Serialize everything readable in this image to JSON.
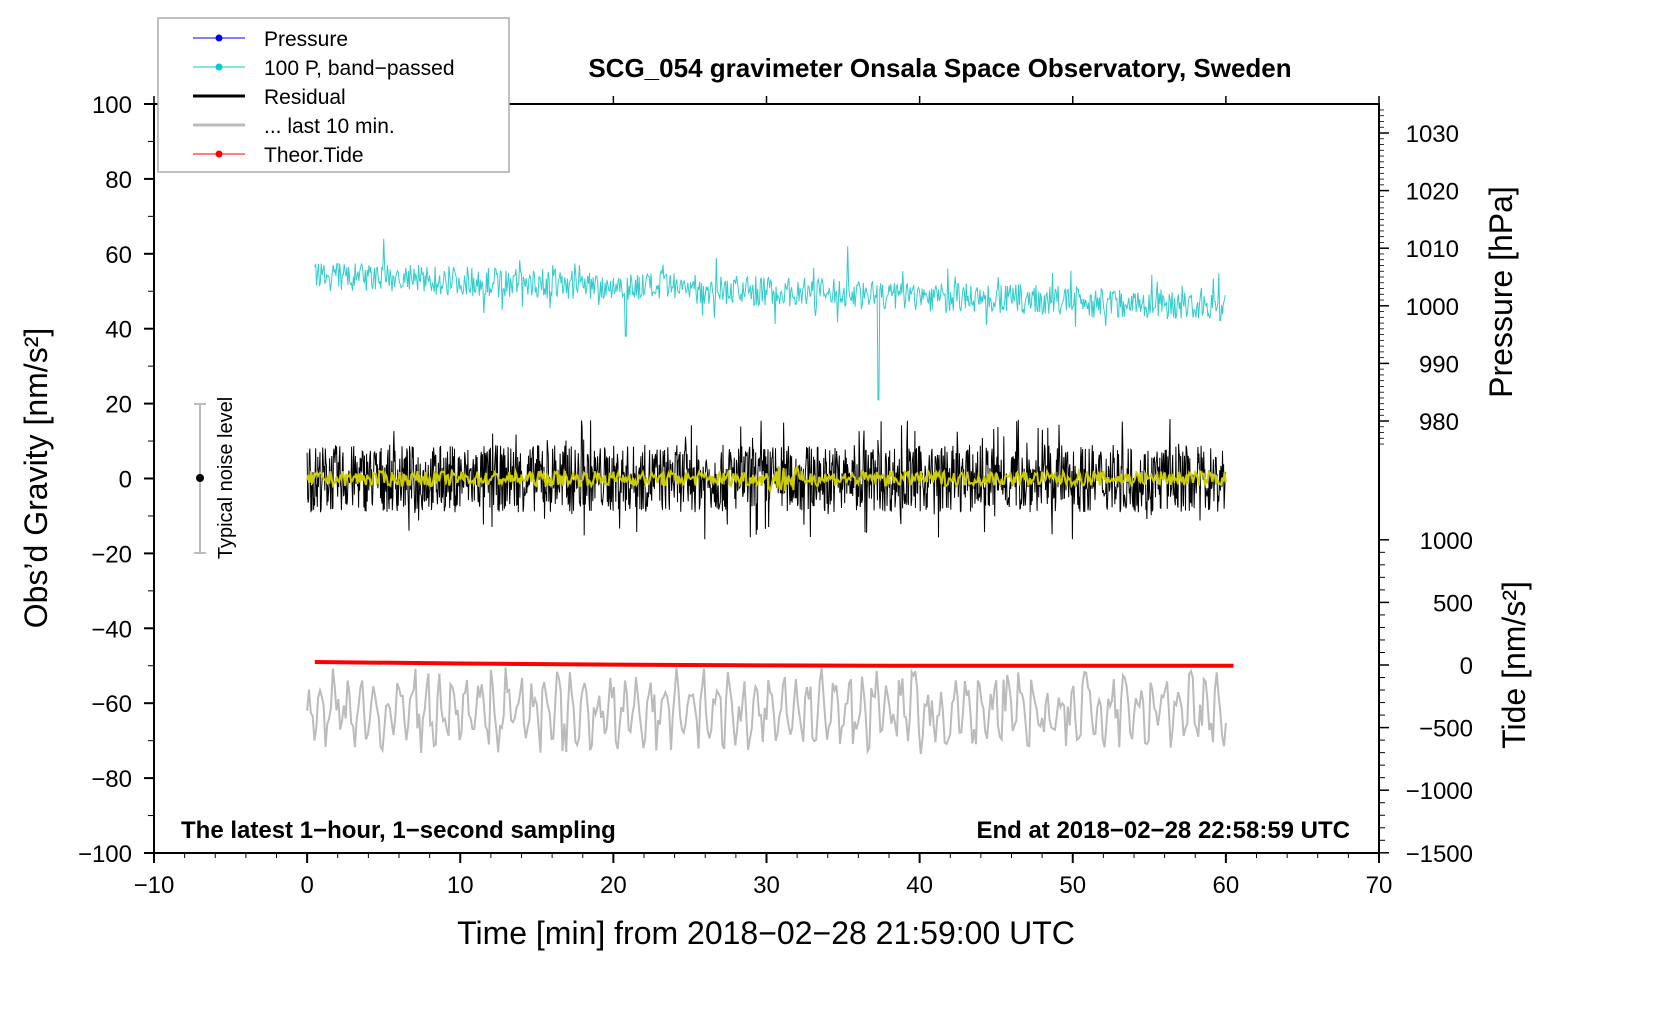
{
  "chart_data": {
    "type": "line",
    "title": "SCG_054 gravimeter Onsala Space Observatory, Sweden",
    "xlabel": "Time [min] from 2018−02−28 21:59:00 UTC",
    "ylabel": "Obs’d Gravity [nm/s²]",
    "ylabel_right_top": "Pressure [hPa]",
    "ylabel_right_bottom": "Tide [nm/s²]",
    "xlim": [
      -10,
      70
    ],
    "ylim": [
      -100,
      100
    ],
    "pressure_lim": [
      980,
      1030
    ],
    "tide_lim": [
      -1500,
      1000
    ],
    "xticks": [
      "−10",
      "0",
      "10",
      "20",
      "30",
      "40",
      "50",
      "60",
      "70"
    ],
    "yticks": [
      "100",
      "80",
      "60",
      "40",
      "20",
      "0",
      "−20",
      "−40",
      "−60",
      "−80",
      "−100"
    ],
    "pressure_ticks": [
      "1030",
      "1020",
      "1010",
      "1000",
      "990",
      "980"
    ],
    "tide_ticks": [
      "1000",
      "500",
      "0",
      "−500",
      "−1000",
      "−1500"
    ],
    "legend": {
      "placement": "top-left",
      "entries": [
        {
          "label": "Pressure",
          "color": "#0000ff"
        },
        {
          "label": "100 P, band−passed",
          "color": "#00cccc"
        },
        {
          "label": "Residual",
          "color": "#000000"
        },
        {
          "label": "... last 10 min.",
          "color": "#bbbbbb"
        },
        {
          "label": "Theor.Tide",
          "color": "#ff0000"
        }
      ]
    },
    "annotations": {
      "bottom_left": "The latest 1−hour, 1−second sampling",
      "bottom_right": "End at 2018−02−28 22:58:59 UTC",
      "noise_label": "Typical noise level",
      "noise_range": [
        -20,
        20
      ]
    },
    "series": [
      {
        "name": "100 P, band-passed",
        "x_range": [
          0.5,
          60
        ],
        "baseline_start": 54,
        "baseline_end": 46,
        "amplitude": 5,
        "spikes": [
          [
            20.8,
            68
          ],
          [
            20.8,
            38
          ],
          [
            37.3,
            63
          ],
          [
            37.3,
            21
          ],
          [
            35.3,
            62
          ],
          [
            5,
            64
          ]
        ]
      },
      {
        "name": "Residual",
        "x_range": [
          0,
          60
        ],
        "mean": 0,
        "amplitude": 15
      },
      {
        "name": "Residual smoothed",
        "x_range": [
          0,
          60
        ],
        "mean": 0,
        "amplitude": 2,
        "color": "#cccc00"
      },
      {
        "name": "Theor.Tide",
        "x": [
          0.5,
          10,
          20,
          30,
          40,
          50,
          60.5
        ],
        "y": [
          -49,
          -49.4,
          -49.7,
          -49.9,
          -50,
          -50,
          -50
        ]
      },
      {
        "name": "... last 10 min.",
        "x_range": [
          0,
          60
        ],
        "mean": -62,
        "amplitude": 10
      }
    ]
  }
}
